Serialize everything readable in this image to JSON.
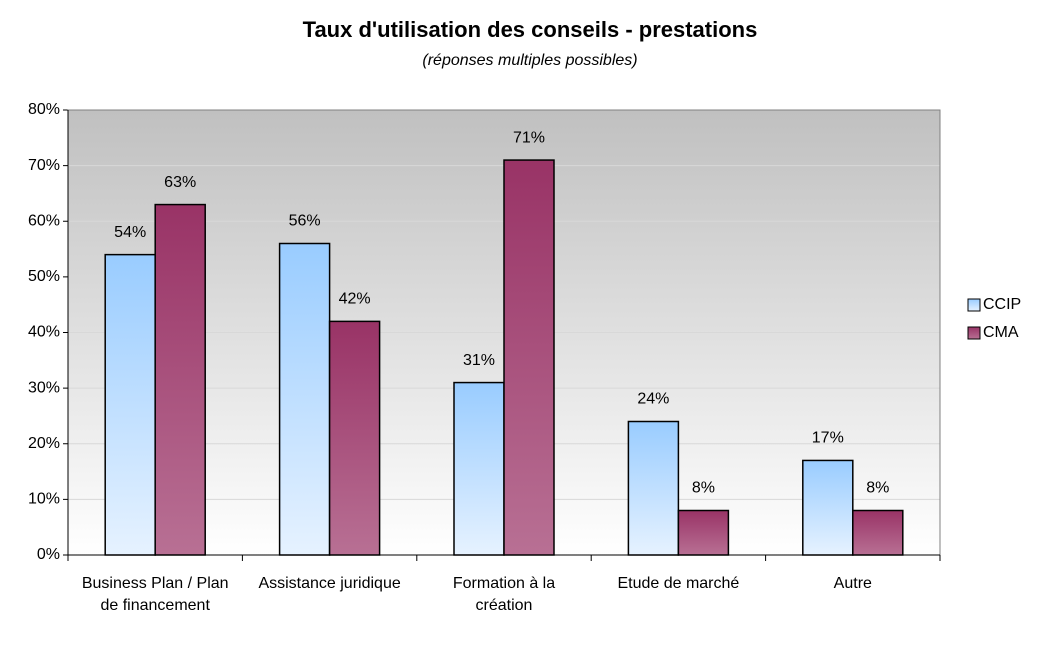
{
  "chart_data": {
    "type": "bar",
    "title": "Taux d'utilisation des conseils - prestations",
    "subtitle": "(réponses multiples possibles)",
    "categories": [
      "Business Plan / Plan de financement",
      "Assistance juridique",
      "Formation à la création",
      "Etude de marché",
      "Autre"
    ],
    "series": [
      {
        "name": "CCIP",
        "color": "#99ccff",
        "values": [
          54,
          56,
          31,
          24,
          17
        ],
        "value_labels": [
          "54%",
          "56%",
          "31%",
          "24%",
          "17%"
        ]
      },
      {
        "name": "CMA",
        "color": "#993366",
        "values": [
          63,
          42,
          71,
          8,
          8
        ],
        "value_labels": [
          "63%",
          "42%",
          "71%",
          "8%",
          "8%"
        ]
      }
    ],
    "ylim": [
      0,
      80
    ],
    "yticks": [
      {
        "value": 0,
        "label": "0%"
      },
      {
        "value": 10,
        "label": "10%"
      },
      {
        "value": 20,
        "label": "20%"
      },
      {
        "value": 30,
        "label": "30%"
      },
      {
        "value": 40,
        "label": "40%"
      },
      {
        "value": 50,
        "label": "50%"
      },
      {
        "value": 60,
        "label": "60%"
      },
      {
        "value": 70,
        "label": "70%"
      },
      {
        "value": 80,
        "label": "80%"
      }
    ],
    "grid": true,
    "legend": "right"
  }
}
